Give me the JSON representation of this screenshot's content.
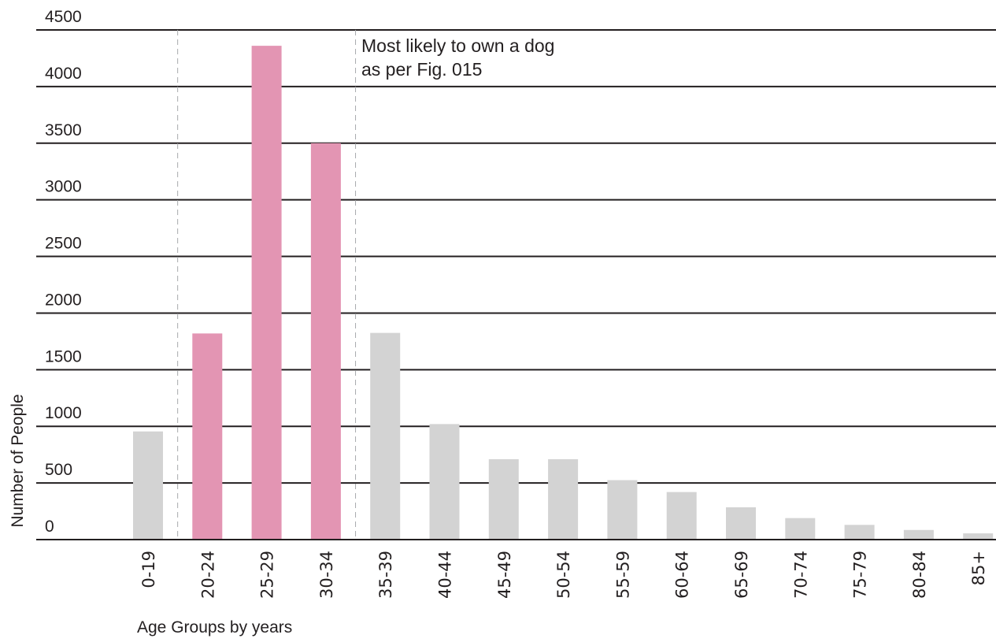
{
  "chart_data": {
    "type": "bar",
    "title": "",
    "xlabel": "Age Groups by years",
    "ylabel": "Number of People",
    "ylim": [
      0,
      4500
    ],
    "yticks": [
      0,
      500,
      1000,
      1500,
      2000,
      2500,
      3000,
      3500,
      4000,
      4500
    ],
    "grid": true,
    "categories": [
      "0-19",
      "20-24",
      "25-29",
      "30-34",
      "35-39",
      "40-44",
      "45-49",
      "50-54",
      "55-59",
      "60-64",
      "65-69",
      "70-74",
      "75-79",
      "80-84",
      "85+"
    ],
    "values": [
      955,
      1820,
      4360,
      3500,
      1825,
      1020,
      710,
      710,
      525,
      420,
      285,
      190,
      130,
      85,
      55
    ],
    "highlighted_categories": [
      "20-24",
      "25-29",
      "30-34"
    ],
    "highlight_color": "#e395b3",
    "default_color": "#d3d3d3",
    "gridline_color": "#231f20",
    "annotation": {
      "lines": [
        "Most likely to own a dog",
        "as per Fig. 015"
      ]
    }
  }
}
